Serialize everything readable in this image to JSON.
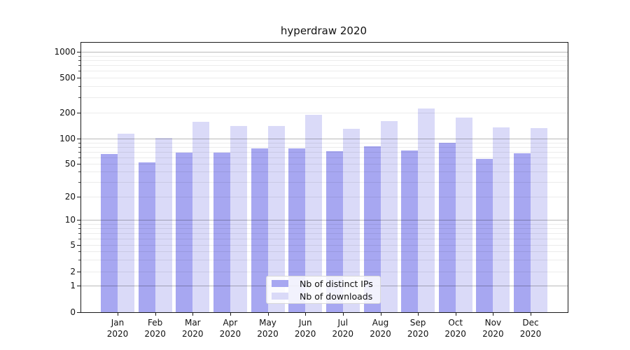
{
  "figure": {
    "title": "hyperdraw 2020"
  },
  "chart_data": {
    "type": "bar",
    "title": "hyperdraw 2020",
    "x_axis": {
      "months": [
        "Jan",
        "Feb",
        "Mar",
        "Apr",
        "May",
        "Jun",
        "Jul",
        "Aug",
        "Sep",
        "Oct",
        "Nov",
        "Dec"
      ],
      "year": "2020"
    },
    "y_axis": {
      "scale": "symlog",
      "ticks": [
        0,
        1,
        2,
        5,
        10,
        20,
        50,
        100,
        200,
        500,
        1000
      ],
      "tick_labels": [
        "0",
        "1",
        "2",
        "5",
        "10",
        "20",
        "50",
        "100",
        "200",
        "500",
        "1000"
      ],
      "ylim": [
        0,
        1400
      ],
      "grid": true
    },
    "series": [
      {
        "name": "Nb of distinct IPs",
        "color": "#a7a7f1",
        "values": [
          65,
          52,
          68,
          68,
          76,
          76,
          71,
          81,
          72,
          89,
          57,
          67
        ]
      },
      {
        "name": "Nb of downloads",
        "color": "#dadaf8",
        "values": [
          114,
          102,
          157,
          140,
          140,
          189,
          131,
          160,
          223,
          175,
          135,
          132
        ]
      }
    ],
    "legend": {
      "position": "lower center"
    }
  }
}
